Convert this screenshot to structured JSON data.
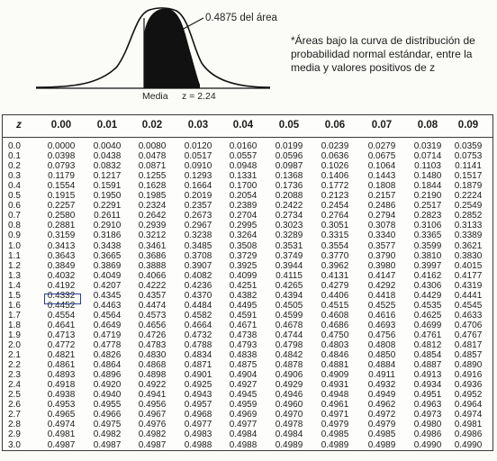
{
  "figure": {
    "area_label": "0.4875 del área",
    "media_label": "Media",
    "z_label": "z = 2.24"
  },
  "caption": "*Áreas bajo la curva de distribución de probabilidad normal estándar, entre la media y valores positivos de z",
  "table": {
    "z_header": "z",
    "columns": [
      "0.00",
      "0.01",
      "0.02",
      "0.03",
      "0.04",
      "0.05",
      "0.06",
      "0.07",
      "0.08",
      "0.09"
    ],
    "rows": [
      {
        "z": "0.0",
        "values": [
          "0.0000",
          "0.0040",
          "0.0080",
          "0.0120",
          "0.0160",
          "0.0199",
          "0.0239",
          "0.0279",
          "0.0319",
          "0.0359"
        ]
      },
      {
        "z": "0.1",
        "values": [
          "0.0398",
          "0.0438",
          "0.0478",
          "0.0517",
          "0.0557",
          "0.0596",
          "0.0636",
          "0.0675",
          "0.0714",
          "0.0753"
        ]
      },
      {
        "z": "0.2",
        "values": [
          "0.0793",
          "0.0832",
          "0.0871",
          "0.0910",
          "0.0948",
          "0.0987",
          "0.1026",
          "0.1064",
          "0.1103",
          "0.1141"
        ]
      },
      {
        "z": "0.3",
        "values": [
          "0.1179",
          "0.1217",
          "0.1255",
          "0.1293",
          "0.1331",
          "0.1368",
          "0.1406",
          "0.1443",
          "0.1480",
          "0.1517"
        ]
      },
      {
        "z": "0.4",
        "values": [
          "0.1554",
          "0.1591",
          "0.1628",
          "0.1664",
          "0.1700",
          "0.1736",
          "0.1772",
          "0.1808",
          "0.1844",
          "0.1879"
        ]
      },
      {
        "z": "0.5",
        "values": [
          "0.1915",
          "0.1950",
          "0.1985",
          "0.2019",
          "0.2054",
          "0.2088",
          "0.2123",
          "0.2157",
          "0.2190",
          "0.2224"
        ]
      },
      {
        "z": "0.6",
        "values": [
          "0.2257",
          "0.2291",
          "0.2324",
          "0.2357",
          "0.2389",
          "0.2422",
          "0.2454",
          "0.2486",
          "0.2517",
          "0.2549"
        ]
      },
      {
        "z": "0.7",
        "values": [
          "0.2580",
          "0.2611",
          "0.2642",
          "0.2673",
          "0.2704",
          "0.2734",
          "0.2764",
          "0.2794",
          "0.2823",
          "0.2852"
        ]
      },
      {
        "z": "0.8",
        "values": [
          "0.2881",
          "0.2910",
          "0.2939",
          "0.2967",
          "0.2995",
          "0.3023",
          "0.3051",
          "0.3078",
          "0.3106",
          "0.3133"
        ]
      },
      {
        "z": "0.9",
        "values": [
          "0.3159",
          "0.3186",
          "0.3212",
          "0.3238",
          "0.3264",
          "0.3289",
          "0.3315",
          "0.3340",
          "0.3365",
          "0.3389"
        ]
      },
      {
        "z": "1.0",
        "values": [
          "0.3413",
          "0.3438",
          "0.3461",
          "0.3485",
          "0.3508",
          "0.3531",
          "0.3554",
          "0.3577",
          "0.3599",
          "0.3621"
        ]
      },
      {
        "z": "1.1",
        "values": [
          "0.3643",
          "0.3665",
          "0.3686",
          "0.3708",
          "0.3729",
          "0.3749",
          "0.3770",
          "0.3790",
          "0.3810",
          "0.3830"
        ]
      },
      {
        "z": "1.2",
        "values": [
          "0.3849",
          "0.3869",
          "0.3888",
          "0.3907",
          "0.3925",
          "0.3944",
          "0.3962",
          "0.3980",
          "0.3997",
          "0.4015"
        ]
      },
      {
        "z": "1.3",
        "values": [
          "0.4032",
          "0.4049",
          "0.4066",
          "0.4082",
          "0.4099",
          "0.4115",
          "0.4131",
          "0.4147",
          "0.4162",
          "0.4177"
        ]
      },
      {
        "z": "1.4",
        "values": [
          "0.4192",
          "0.4207",
          "0.4222",
          "0.4236",
          "0.4251",
          "0.4265",
          "0.4279",
          "0.4292",
          "0.4306",
          "0.4319"
        ]
      },
      {
        "z": "1.5",
        "values": [
          "0.4332",
          "0.4345",
          "0.4357",
          "0.4370",
          "0.4382",
          "0.4394",
          "0.4406",
          "0.4418",
          "0.4429",
          "0.4441"
        ]
      },
      {
        "z": "1.6",
        "values": [
          "0.4452",
          "0.4463",
          "0.4474",
          "0.4484",
          "0.4495",
          "0.4505",
          "0.4515",
          "0.4525",
          "0.4535",
          "0.4545"
        ]
      },
      {
        "z": "1.7",
        "values": [
          "0.4554",
          "0.4564",
          "0.4573",
          "0.4582",
          "0.4591",
          "0.4599",
          "0.4608",
          "0.4616",
          "0.4625",
          "0.4633"
        ]
      },
      {
        "z": "1.8",
        "values": [
          "0.4641",
          "0.4649",
          "0.4656",
          "0.4664",
          "0.4671",
          "0.4678",
          "0.4686",
          "0.4693",
          "0.4699",
          "0.4706"
        ]
      },
      {
        "z": "1.9",
        "values": [
          "0.4713",
          "0.4719",
          "0.4726",
          "0.4732",
          "0.4738",
          "0.4744",
          "0.4750",
          "0.4756",
          "0.4761",
          "0.4767"
        ]
      },
      {
        "z": "2.0",
        "values": [
          "0.4772",
          "0.4778",
          "0.4783",
          "0.4788",
          "0.4793",
          "0.4798",
          "0.4803",
          "0.4808",
          "0.4812",
          "0.4817"
        ]
      },
      {
        "z": "2.1",
        "values": [
          "0.4821",
          "0.4826",
          "0.4830",
          "0.4834",
          "0.4838",
          "0.4842",
          "0.4846",
          "0.4850",
          "0.4854",
          "0.4857"
        ]
      },
      {
        "z": "2.2",
        "values": [
          "0.4861",
          "0.4864",
          "0.4868",
          "0.4871",
          "0.4875",
          "0.4878",
          "0.4881",
          "0.4884",
          "0.4887",
          "0.4890"
        ]
      },
      {
        "z": "2.3",
        "values": [
          "0.4893",
          "0.4896",
          "0.4898",
          "0.4901",
          "0.4904",
          "0.4906",
          "0.4909",
          "0.4911",
          "0.4913",
          "0.4916"
        ]
      },
      {
        "z": "2.4",
        "values": [
          "0.4918",
          "0.4920",
          "0.4922",
          "0.4925",
          "0.4927",
          "0.4929",
          "0.4931",
          "0.4932",
          "0.4934",
          "0.4936"
        ]
      },
      {
        "z": "2.5",
        "values": [
          "0.4938",
          "0.4940",
          "0.4941",
          "0.4943",
          "0.4945",
          "0.4946",
          "0.4948",
          "0.4949",
          "0.4951",
          "0.4952"
        ]
      },
      {
        "z": "2.6",
        "values": [
          "0.4953",
          "0.4955",
          "0.4956",
          "0.4957",
          "0.4959",
          "0.4960",
          "0.4961",
          "0.4962",
          "0.4963",
          "0.4964"
        ]
      },
      {
        "z": "2.7",
        "values": [
          "0.4965",
          "0.4966",
          "0.4967",
          "0.4968",
          "0.4969",
          "0.4970",
          "0.4971",
          "0.4972",
          "0.4973",
          "0.4974"
        ]
      },
      {
        "z": "2.8",
        "values": [
          "0.4974",
          "0.4975",
          "0.4976",
          "0.4977",
          "0.4977",
          "0.4978",
          "0.4979",
          "0.4979",
          "0.4980",
          "0.4981"
        ]
      },
      {
        "z": "2.9",
        "values": [
          "0.4981",
          "0.4982",
          "0.4982",
          "0.4983",
          "0.4984",
          "0.4984",
          "0.4985",
          "0.4985",
          "0.4986",
          "0.4986"
        ]
      },
      {
        "z": "3.0",
        "values": [
          "0.4987",
          "0.4987",
          "0.4987",
          "0.4988",
          "0.4988",
          "0.4989",
          "0.4989",
          "0.4989",
          "0.4990",
          "0.4990"
        ]
      }
    ]
  }
}
